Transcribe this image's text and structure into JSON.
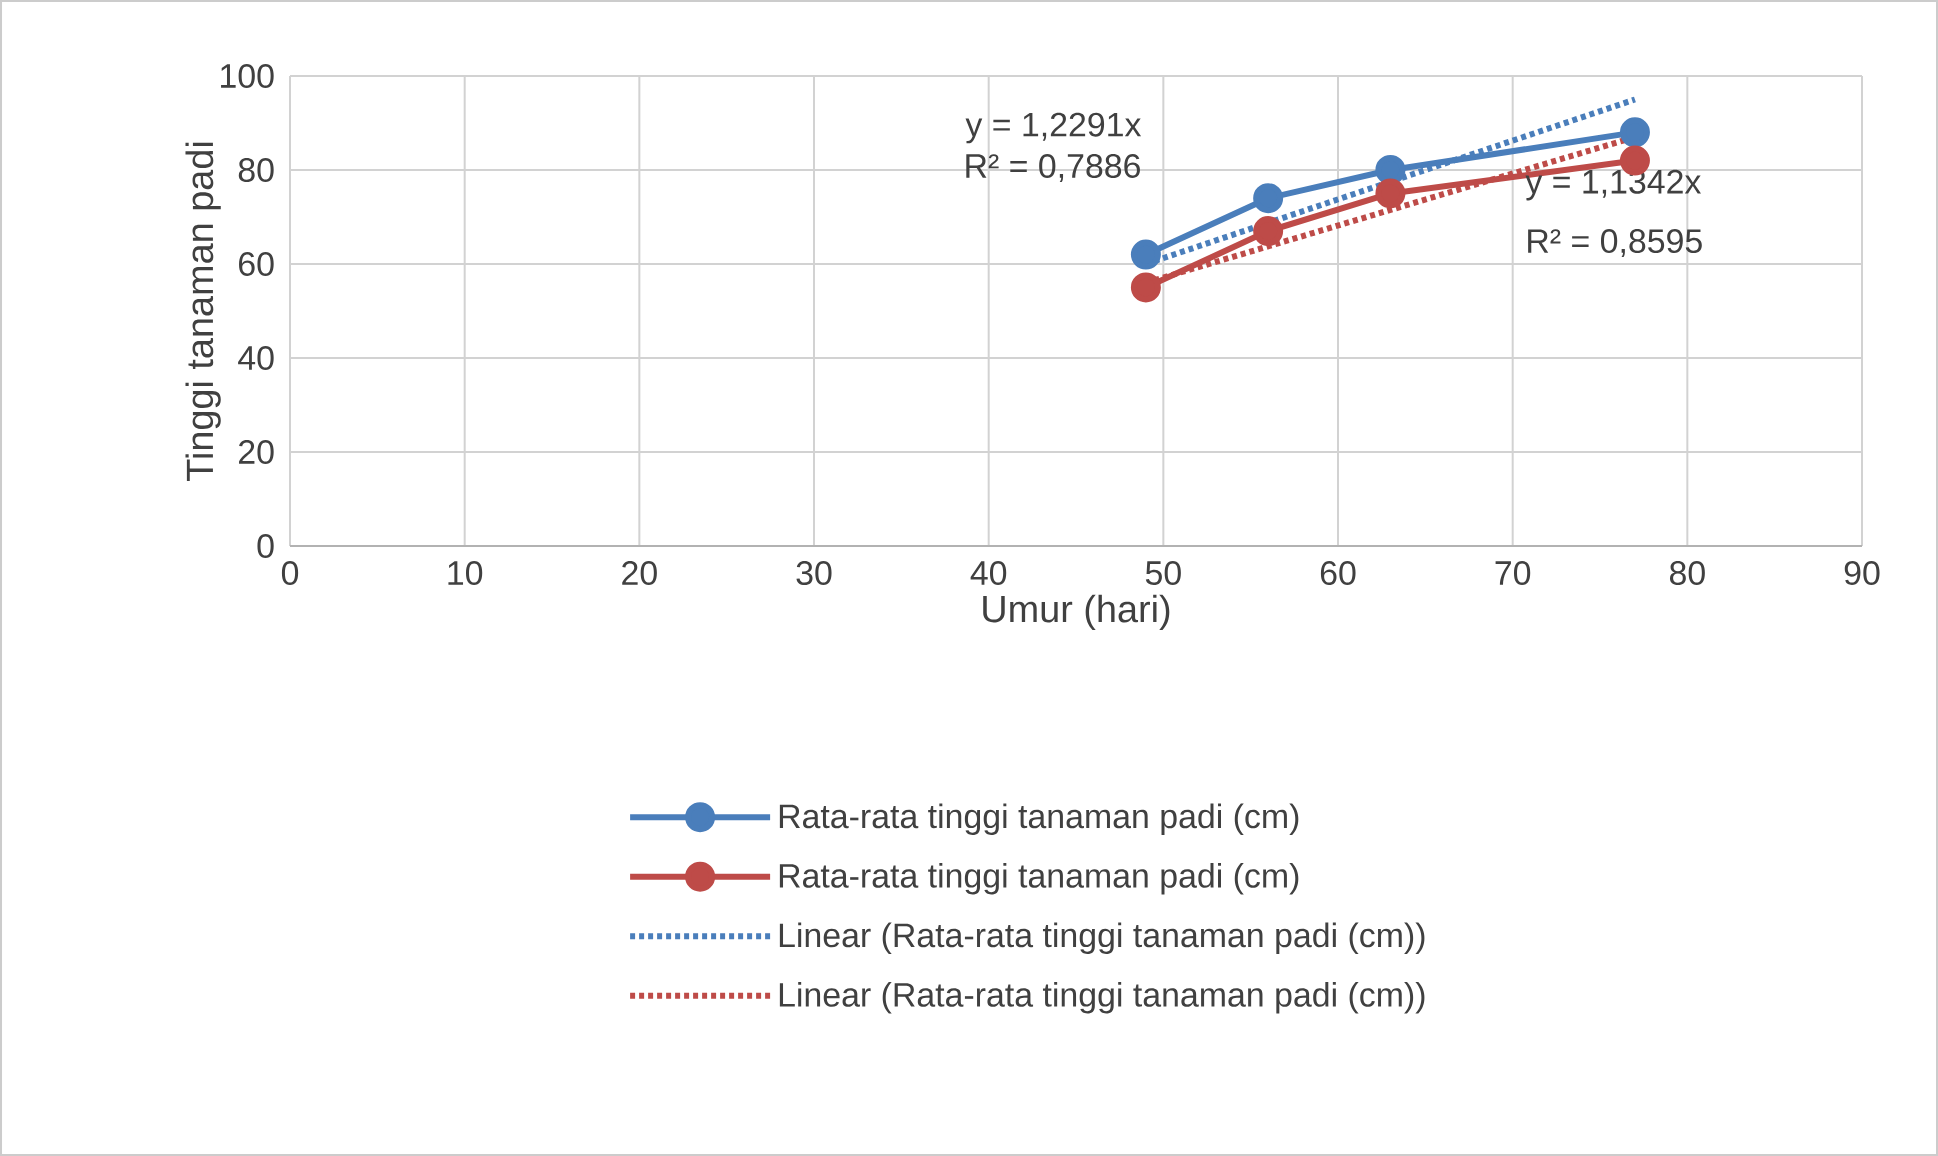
{
  "chart_data": {
    "type": "line",
    "xlabel": "Umur (hari)",
    "ylabel": "Tinggi tanaman padi",
    "xlim": [
      0,
      90
    ],
    "xticks": [
      0,
      10,
      20,
      30,
      40,
      50,
      60,
      70,
      80,
      90
    ],
    "ylim": [
      0,
      100
    ],
    "yticks": [
      0,
      20,
      40,
      60,
      80,
      100
    ],
    "grid": true,
    "legend": "bottom",
    "series": [
      {
        "name": "Rata-rata tinggi tanaman padi (cm)",
        "color": "#4a7ebb",
        "x": [
          49,
          56,
          63,
          77
        ],
        "values": [
          62,
          74,
          80,
          88
        ],
        "marker": "circle",
        "line_style": "solid"
      },
      {
        "name": "Rata-rata tinggi tanaman padi (cm)",
        "color": "#be4b48",
        "x": [
          49,
          56,
          63,
          77
        ],
        "values": [
          55,
          67,
          75,
          82
        ],
        "marker": "circle",
        "line_style": "solid"
      },
      {
        "name": "Linear (Rata-rata tinggi tanaman padi (cm))",
        "color": "#4a7ebb",
        "x": [
          49,
          77
        ],
        "values": [
          60,
          95
        ],
        "marker": "none",
        "line_style": "dotted"
      },
      {
        "name": "Linear (Rata-rata tinggi tanaman padi (cm))",
        "color": "#be4b48",
        "x": [
          49,
          77
        ],
        "values": [
          56,
          87
        ],
        "marker": "none",
        "line_style": "dotted"
      }
    ],
    "annotations": [
      "y = 1,2291x",
      "R² = 0,7886",
      "y = 1,1342x",
      "R² = 0,8595"
    ]
  }
}
